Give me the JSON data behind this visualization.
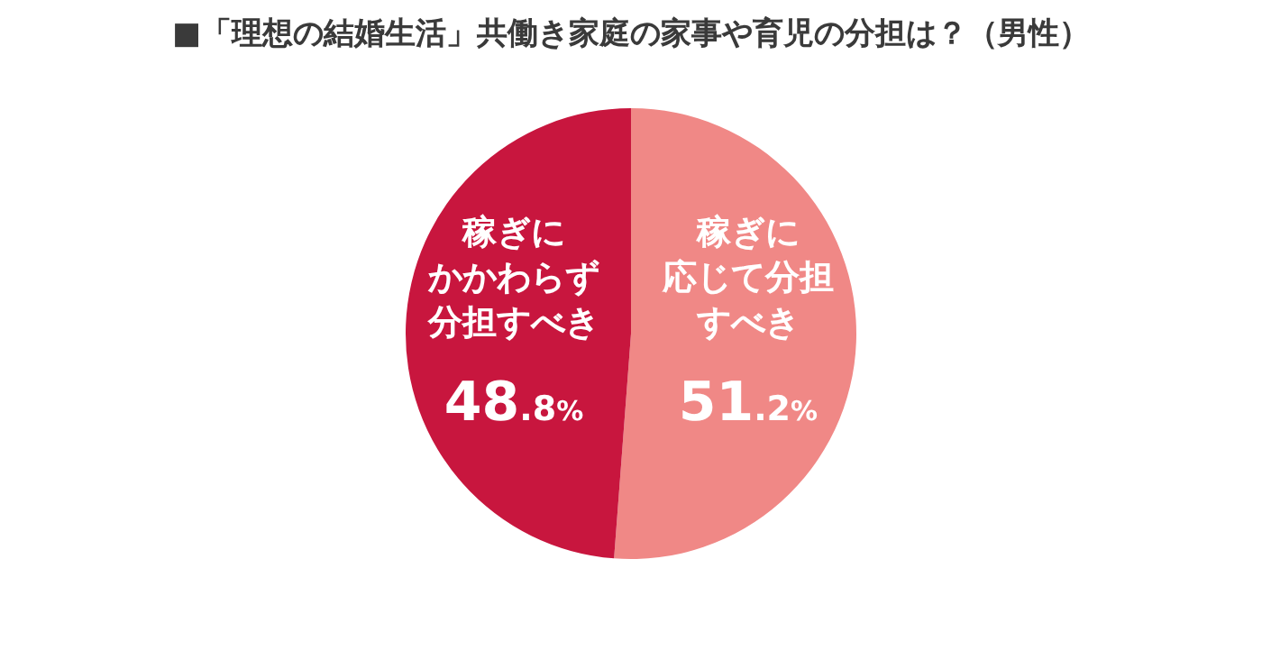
{
  "chart_data": {
    "type": "pie",
    "title": "■「理想の結婚生活」共働き家庭の家事や育児の分担は？（男性）",
    "categories": [
      "稼ぎに応じて分担すべき",
      "稼ぎにかかわらず分担すべき"
    ],
    "values": [
      51.2,
      48.8
    ],
    "colors": [
      "#f08886",
      "#c8163e"
    ],
    "value_labels": [
      "51.2%",
      "48.8%"
    ],
    "legend": false
  }
}
